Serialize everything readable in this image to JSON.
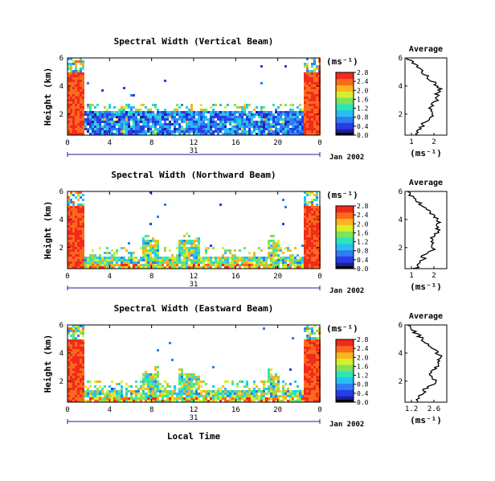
{
  "chart_data": [
    {
      "type": "heatmap",
      "title": "Spectral Width (Vertical Beam)",
      "ylabel": "Height (km)",
      "y_ticks": [
        "2",
        "4",
        "6"
      ],
      "x_ticks": [
        "0",
        "4",
        "8",
        "12",
        "16",
        "20",
        "0"
      ],
      "day_label": "31",
      "date_label": "Jan 2002",
      "colorbar": {
        "unit": "(ms⁻¹)",
        "ticks": [
          "0.0",
          "0.4",
          "0.8",
          "1.2",
          "1.6",
          "2.0",
          "2.4",
          "2.8"
        ]
      },
      "profile": {
        "title": "Average",
        "xlabel": "(ms⁻¹)",
        "x_ticks": [
          "1",
          "2"
        ],
        "y_ticks": [
          "2",
          "4",
          "6"
        ]
      }
    },
    {
      "type": "heatmap",
      "title": "Spectral Width (Northward Beam)",
      "ylabel": "Height (km)",
      "y_ticks": [
        "2",
        "4",
        "6"
      ],
      "x_ticks": [
        "0",
        "4",
        "8",
        "12",
        "16",
        "20",
        "0"
      ],
      "day_label": "31",
      "date_label": "Jan 2002",
      "colorbar": {
        "unit": "(ms⁻¹)",
        "ticks": [
          "0.0",
          "0.4",
          "0.8",
          "1.2",
          "1.6",
          "2.0",
          "2.4",
          "2.8"
        ]
      },
      "profile": {
        "title": "Average",
        "xlabel": "(ms⁻¹)",
        "x_ticks": [
          "1",
          "2"
        ],
        "y_ticks": [
          "2",
          "4",
          "6"
        ]
      }
    },
    {
      "type": "heatmap",
      "title": "Spectral Width (Eastward Beam)",
      "ylabel": "Height (km)",
      "y_ticks": [
        "2",
        "4",
        "6"
      ],
      "x_ticks": [
        "0",
        "4",
        "8",
        "12",
        "16",
        "20",
        "0"
      ],
      "day_label": "31",
      "date_label": "Jan 2002",
      "xlabel": "Local Time",
      "colorbar": {
        "unit": "(ms⁻¹)",
        "ticks": [
          "0.0",
          "0.4",
          "0.8",
          "1.2",
          "1.6",
          "2.0",
          "2.4",
          "2.8"
        ]
      },
      "profile": {
        "title": "Average",
        "xlabel": "(ms⁻¹)",
        "x_ticks": [
          "1.2",
          "2.6"
        ],
        "y_ticks": [
          "2",
          "4",
          "6"
        ]
      }
    }
  ]
}
